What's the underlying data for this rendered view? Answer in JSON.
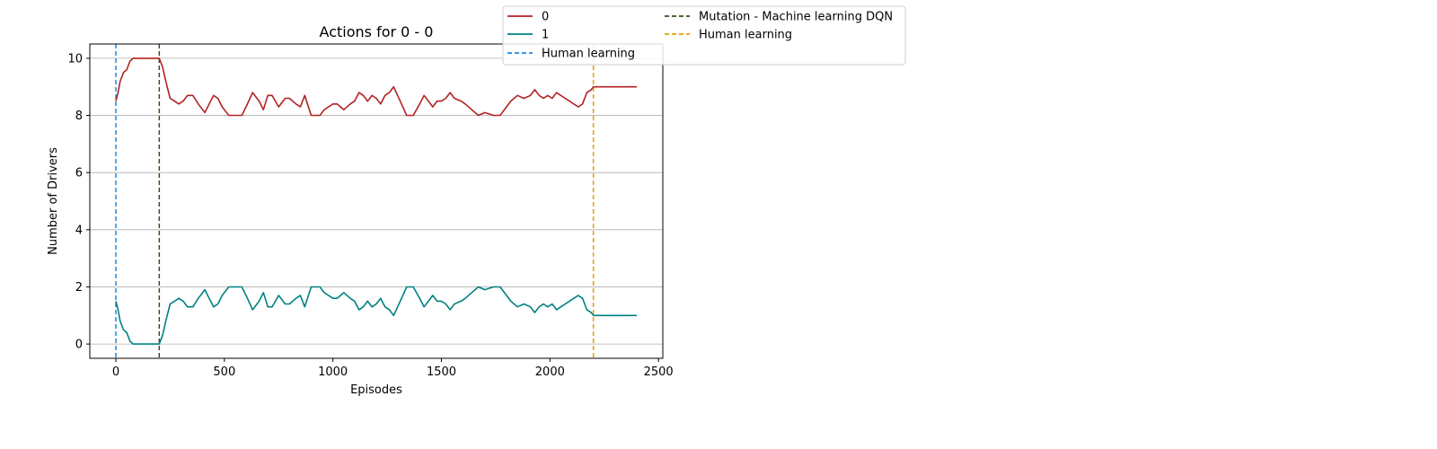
{
  "chart_data": {
    "type": "line",
    "title": "Actions for 0 - 0",
    "xlabel": "Episodes",
    "ylabel": "Number of Drivers",
    "xlim": [
      -120,
      2520
    ],
    "ylim": [
      -0.5,
      10.5
    ],
    "xticks": [
      0,
      500,
      1000,
      1500,
      2000,
      2500
    ],
    "yticks": [
      0,
      2,
      4,
      6,
      8,
      10
    ],
    "grid": "y-major",
    "legend_position": "top-right, outside plot",
    "series": [
      {
        "name": "0",
        "color": "#b22222",
        "x": [
          0,
          10,
          20,
          35,
          50,
          65,
          80,
          100,
          120,
          150,
          200,
          215,
          230,
          250,
          270,
          290,
          310,
          330,
          355,
          380,
          410,
          430,
          450,
          470,
          490,
          520,
          550,
          580,
          600,
          630,
          660,
          680,
          700,
          720,
          750,
          780,
          800,
          830,
          850,
          870,
          900,
          920,
          940,
          960,
          980,
          1000,
          1020,
          1050,
          1080,
          1100,
          1120,
          1140,
          1160,
          1180,
          1200,
          1220,
          1240,
          1260,
          1280,
          1310,
          1340,
          1370,
          1400,
          1420,
          1440,
          1460,
          1480,
          1500,
          1520,
          1540,
          1560,
          1590,
          1610,
          1640,
          1670,
          1700,
          1740,
          1770,
          1800,
          1820,
          1850,
          1880,
          1910,
          1930,
          1950,
          1970,
          1990,
          2010,
          2030,
          2050,
          2070,
          2090,
          2110,
          2130,
          2150,
          2170,
          2190,
          2200,
          2250,
          2300,
          2350,
          2400
        ],
        "values": [
          8.5,
          8.8,
          9.2,
          9.5,
          9.6,
          9.9,
          10.0,
          10.0,
          10.0,
          10.0,
          10.0,
          9.7,
          9.2,
          8.6,
          8.5,
          8.4,
          8.5,
          8.7,
          8.7,
          8.4,
          8.1,
          8.4,
          8.7,
          8.6,
          8.3,
          8.0,
          8.0,
          8.0,
          8.3,
          8.8,
          8.5,
          8.2,
          8.7,
          8.7,
          8.3,
          8.6,
          8.6,
          8.4,
          8.3,
          8.7,
          8.0,
          8.0,
          8.0,
          8.2,
          8.3,
          8.4,
          8.4,
          8.2,
          8.4,
          8.5,
          8.8,
          8.7,
          8.5,
          8.7,
          8.6,
          8.4,
          8.7,
          8.8,
          9.0,
          8.5,
          8.0,
          8.0,
          8.4,
          8.7,
          8.5,
          8.3,
          8.5,
          8.5,
          8.6,
          8.8,
          8.6,
          8.5,
          8.4,
          8.2,
          8.0,
          8.1,
          8.0,
          8.0,
          8.3,
          8.5,
          8.7,
          8.6,
          8.7,
          8.9,
          8.7,
          8.6,
          8.7,
          8.6,
          8.8,
          8.7,
          8.6,
          8.5,
          8.4,
          8.3,
          8.4,
          8.8,
          8.9,
          9.0,
          9.0,
          9.0,
          9.0,
          9.0
        ]
      },
      {
        "name": "1",
        "color": "#008080",
        "x": [
          0,
          10,
          20,
          35,
          50,
          65,
          80,
          100,
          120,
          150,
          200,
          215,
          230,
          250,
          270,
          290,
          310,
          330,
          355,
          380,
          410,
          430,
          450,
          470,
          490,
          520,
          550,
          580,
          600,
          630,
          660,
          680,
          700,
          720,
          750,
          780,
          800,
          830,
          850,
          870,
          900,
          920,
          940,
          960,
          980,
          1000,
          1020,
          1050,
          1080,
          1100,
          1120,
          1140,
          1160,
          1180,
          1200,
          1220,
          1240,
          1260,
          1280,
          1310,
          1340,
          1370,
          1400,
          1420,
          1440,
          1460,
          1480,
          1500,
          1520,
          1540,
          1560,
          1590,
          1610,
          1640,
          1670,
          1700,
          1740,
          1770,
          1800,
          1820,
          1850,
          1880,
          1910,
          1930,
          1950,
          1970,
          1990,
          2010,
          2030,
          2050,
          2070,
          2090,
          2110,
          2130,
          2150,
          2170,
          2190,
          2200,
          2250,
          2300,
          2350,
          2400
        ],
        "values": [
          1.5,
          1.2,
          0.8,
          0.5,
          0.4,
          0.1,
          0.0,
          0.0,
          0.0,
          0.0,
          0.0,
          0.3,
          0.8,
          1.4,
          1.5,
          1.6,
          1.5,
          1.3,
          1.3,
          1.6,
          1.9,
          1.6,
          1.3,
          1.4,
          1.7,
          2.0,
          2.0,
          2.0,
          1.7,
          1.2,
          1.5,
          1.8,
          1.3,
          1.3,
          1.7,
          1.4,
          1.4,
          1.6,
          1.7,
          1.3,
          2.0,
          2.0,
          2.0,
          1.8,
          1.7,
          1.6,
          1.6,
          1.8,
          1.6,
          1.5,
          1.2,
          1.3,
          1.5,
          1.3,
          1.4,
          1.6,
          1.3,
          1.2,
          1.0,
          1.5,
          2.0,
          2.0,
          1.6,
          1.3,
          1.5,
          1.7,
          1.5,
          1.5,
          1.4,
          1.2,
          1.4,
          1.5,
          1.6,
          1.8,
          2.0,
          1.9,
          2.0,
          2.0,
          1.7,
          1.5,
          1.3,
          1.4,
          1.3,
          1.1,
          1.3,
          1.4,
          1.3,
          1.4,
          1.2,
          1.3,
          1.4,
          1.5,
          1.6,
          1.7,
          1.6,
          1.2,
          1.1,
          1.0,
          1.0,
          1.0,
          1.0,
          1.0
        ]
      }
    ],
    "vlines": [
      {
        "name": "Human learning",
        "x": 0,
        "color": "#1e88e5"
      },
      {
        "name": "Mutation - Machine learning DQN",
        "x": 200,
        "color": "#33501b"
      },
      {
        "name": "Human learning",
        "x": 2200,
        "color": "#e69f00"
      }
    ],
    "legend_entries": [
      {
        "label": "0",
        "color": "#b22222",
        "style": "solid"
      },
      {
        "label": "1",
        "color": "#008080",
        "style": "solid"
      },
      {
        "label": "Human learning",
        "color": "#1e88e5",
        "style": "dashed"
      },
      {
        "label": "Mutation - Machine learning DQN",
        "color": "#33501b",
        "style": "dashed"
      },
      {
        "label": "Human learning",
        "color": "#e69f00",
        "style": "dashed"
      }
    ]
  }
}
